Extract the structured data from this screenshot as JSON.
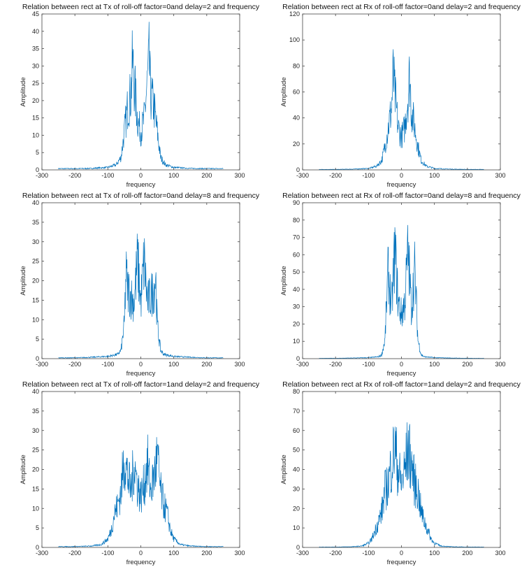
{
  "chart_data": [
    {
      "type": "line",
      "title": "Relation between rect at Tx of roll-off factor=0and delay=2 and frequency",
      "xlabel": "frequency",
      "ylabel": "Amplitude",
      "xlim": [
        -300,
        300
      ],
      "ylim": [
        0,
        45
      ],
      "xticks": [
        -300,
        -200,
        -100,
        0,
        100,
        200,
        300
      ],
      "yticks": [
        0,
        5,
        10,
        15,
        20,
        25,
        30,
        35,
        40,
        45
      ],
      "grid": false,
      "color": "#0072bd",
      "series": [
        {
          "x": [
            -250,
            -200,
            -150,
            -100,
            -75,
            -60,
            -50,
            -40,
            -30,
            -25,
            -20,
            -10,
            0,
            10,
            20,
            25,
            30,
            40,
            50,
            60,
            75,
            100,
            150,
            200,
            250
          ],
          "values": [
            0.5,
            0.5,
            0.6,
            1,
            2,
            5,
            15,
            25,
            30,
            43,
            35,
            20,
            15,
            20,
            35,
            43,
            30,
            25,
            15,
            5,
            2,
            1,
            0.6,
            0.5,
            0.5
          ]
        }
      ]
    },
    {
      "type": "line",
      "title": "Relation between rect at Rx of roll-off factor=0and delay=2 and frequency",
      "xlabel": "frequency",
      "ylabel": "Amplitude",
      "xlim": [
        -300,
        300
      ],
      "ylim": [
        0,
        120
      ],
      "xticks": [
        -300,
        -200,
        -100,
        0,
        100,
        200,
        300
      ],
      "yticks": [
        0,
        20,
        40,
        60,
        80,
        100,
        120
      ],
      "grid": false,
      "color": "#0072bd",
      "series": [
        {
          "x": [
            -250,
            -200,
            -150,
            -100,
            -75,
            -60,
            -50,
            -40,
            -30,
            -25,
            -20,
            -10,
            0,
            10,
            20,
            25,
            30,
            40,
            50,
            60,
            75,
            100,
            150,
            200,
            250
          ],
          "values": [
            0.5,
            0.5,
            0.8,
            1.5,
            4,
            10,
            25,
            45,
            65,
            101,
            80,
            45,
            35,
            45,
            80,
            101,
            65,
            45,
            25,
            10,
            4,
            1.5,
            0.8,
            0.5,
            0.5
          ]
        }
      ]
    },
    {
      "type": "line",
      "title": "Relation between rect at Tx of roll-off factor=0and delay=8 and frequency",
      "xlabel": "frequency",
      "ylabel": "Amplitude",
      "xlim": [
        -300,
        300
      ],
      "ylim": [
        0,
        40
      ],
      "xticks": [
        -300,
        -200,
        -100,
        0,
        100,
        200,
        300
      ],
      "yticks": [
        0,
        5,
        10,
        15,
        20,
        25,
        30,
        35,
        40
      ],
      "grid": false,
      "color": "#0072bd",
      "series": [
        {
          "x": [
            -250,
            -200,
            -150,
            -100,
            -70,
            -60,
            -50,
            -45,
            -40,
            -30,
            -20,
            -10,
            0,
            10,
            20,
            30,
            40,
            45,
            50,
            60,
            70,
            100,
            150,
            200,
            250
          ],
          "values": [
            0.3,
            0.3,
            0.5,
            0.8,
            1.5,
            3,
            12,
            30,
            25,
            22,
            20,
            35,
            20,
            35,
            20,
            22,
            25,
            30,
            12,
            3,
            1.5,
            0.8,
            0.5,
            0.3,
            0.3
          ]
        }
      ]
    },
    {
      "type": "line",
      "title": "Relation between rect at Rx of roll-off factor=0and delay=8 and frequency",
      "xlabel": "frequency",
      "ylabel": "Amplitude",
      "xlim": [
        -300,
        300
      ],
      "ylim": [
        0,
        90
      ],
      "xticks": [
        -300,
        -200,
        -100,
        0,
        100,
        200,
        300
      ],
      "yticks": [
        0,
        10,
        20,
        30,
        40,
        50,
        60,
        70,
        80,
        90
      ],
      "grid": false,
      "color": "#0072bd",
      "series": [
        {
          "x": [
            -250,
            -200,
            -150,
            -100,
            -70,
            -60,
            -50,
            -45,
            -40,
            -30,
            -20,
            -10,
            0,
            10,
            20,
            30,
            40,
            45,
            50,
            60,
            70,
            100,
            150,
            200,
            250
          ],
          "values": [
            0.3,
            0.3,
            0.5,
            0.8,
            1.5,
            3,
            15,
            45,
            70,
            40,
            86,
            45,
            35,
            45,
            86,
            40,
            70,
            45,
            15,
            3,
            1.5,
            0.8,
            0.5,
            0.3,
            0.3
          ]
        }
      ]
    },
    {
      "type": "line",
      "title": "Relation between rect at Tx of roll-off factor=1and delay=2 and frequency",
      "xlabel": "frequency",
      "ylabel": "Amplitude",
      "xlim": [
        -300,
        300
      ],
      "ylim": [
        0,
        40
      ],
      "xticks": [
        -300,
        -200,
        -100,
        0,
        100,
        200,
        300
      ],
      "yticks": [
        0,
        5,
        10,
        15,
        20,
        25,
        30,
        35,
        40
      ],
      "grid": false,
      "color": "#0072bd",
      "series": [
        {
          "x": [
            -250,
            -200,
            -150,
            -120,
            -100,
            -90,
            -80,
            -70,
            -60,
            -50,
            -40,
            -30,
            -20,
            -10,
            0,
            10,
            20,
            30,
            40,
            50,
            60,
            70,
            80,
            90,
            100,
            120,
            150,
            200,
            250
          ],
          "values": [
            0.3,
            0.3,
            0.5,
            1,
            3,
            6,
            12,
            15,
            20,
            32,
            25,
            20,
            30,
            22,
            18,
            22,
            30,
            20,
            25,
            32,
            20,
            15,
            12,
            6,
            3,
            1,
            0.5,
            0.3,
            0.3
          ]
        }
      ]
    },
    {
      "type": "line",
      "title": "Relation between rect at Rx of roll-off factor=1and delay=2 and frequency",
      "xlabel": "frequency",
      "ylabel": "Amplitude",
      "xlim": [
        -300,
        300
      ],
      "ylim": [
        0,
        80
      ],
      "xticks": [
        -300,
        -200,
        -100,
        0,
        100,
        200,
        300
      ],
      "yticks": [
        0,
        10,
        20,
        30,
        40,
        50,
        60,
        70,
        80
      ],
      "grid": false,
      "color": "#0072bd",
      "series": [
        {
          "x": [
            -250,
            -200,
            -150,
            -120,
            -100,
            -90,
            -80,
            -70,
            -60,
            -50,
            -40,
            -30,
            -20,
            -10,
            0,
            10,
            20,
            30,
            40,
            50,
            60,
            70,
            80,
            90,
            100,
            120,
            150,
            200,
            250
          ],
          "values": [
            0.3,
            0.3,
            0.5,
            1,
            3,
            6,
            12,
            18,
            25,
            40,
            45,
            60,
            71,
            55,
            45,
            55,
            70,
            60,
            45,
            40,
            25,
            18,
            12,
            6,
            3,
            1,
            0.5,
            0.3,
            0.3
          ]
        }
      ]
    }
  ]
}
